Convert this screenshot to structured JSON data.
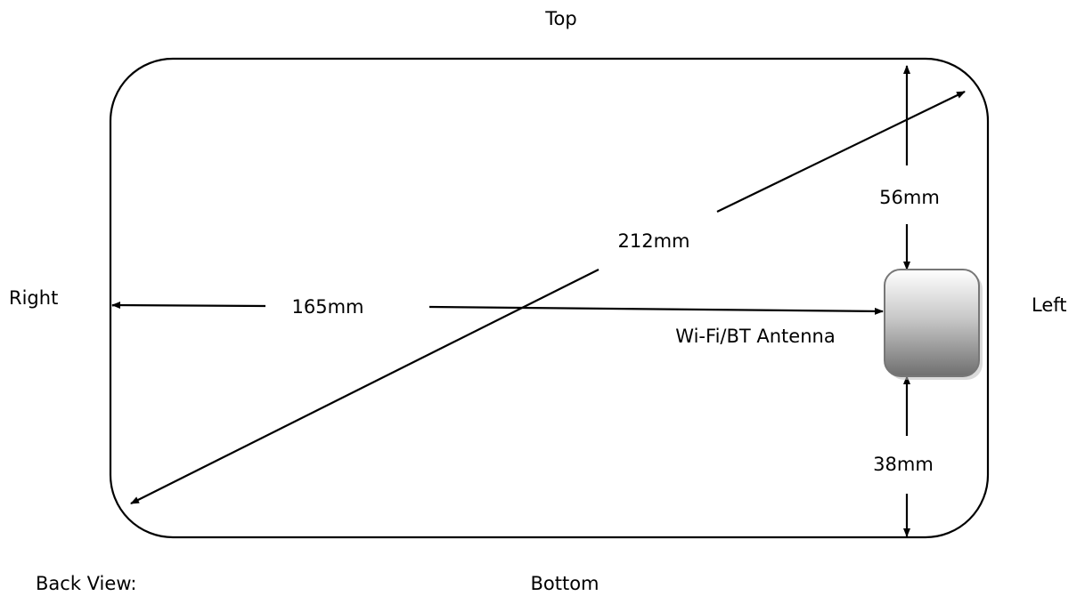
{
  "orientation": {
    "top": "Top",
    "bottom": "Bottom",
    "left": "Left",
    "right": "Right"
  },
  "view_label": "Back View:",
  "dimensions": {
    "diagonal": "212mm",
    "horizontal": "165mm",
    "top_distance": "56mm",
    "bottom_distance": "38mm"
  },
  "antenna_label": "Wi-Fi/BT Antenna"
}
